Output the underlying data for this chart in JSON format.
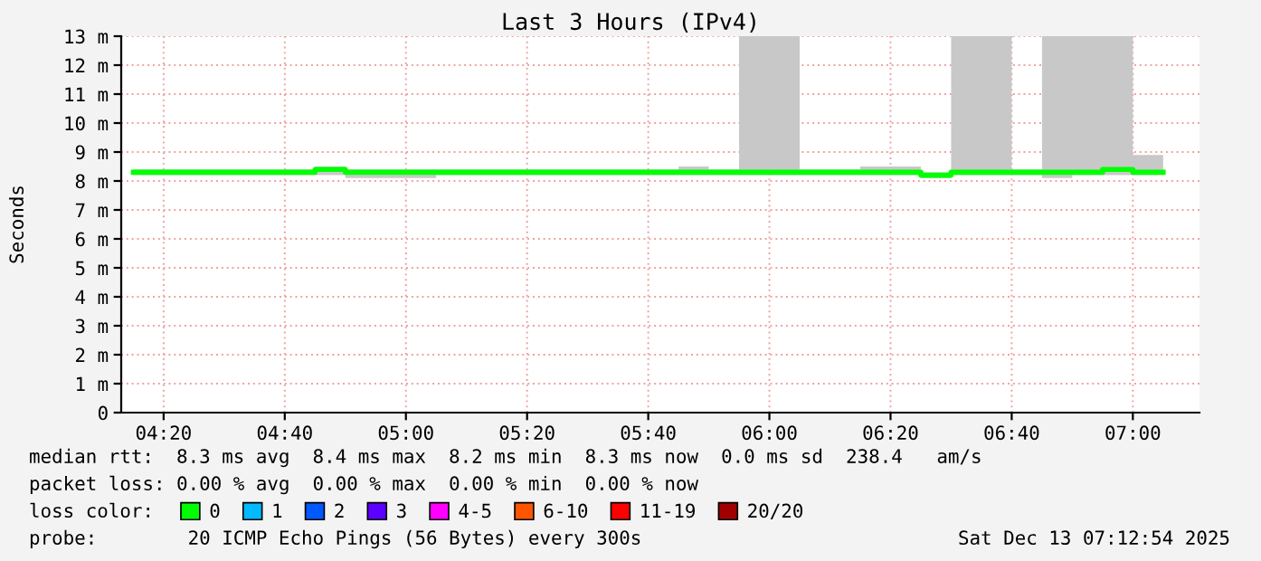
{
  "chart_data": {
    "type": "step",
    "title": "Last 3 Hours (IPv4)",
    "ylabel": "Seconds",
    "x": [
      "2025-12-13T04:15",
      "2025-12-13T04:20",
      "2025-12-13T04:25",
      "2025-12-13T04:30",
      "2025-12-13T04:35",
      "2025-12-13T04:40",
      "2025-12-13T04:45",
      "2025-12-13T04:50",
      "2025-12-13T04:55",
      "2025-12-13T05:00",
      "2025-12-13T05:05",
      "2025-12-13T05:10",
      "2025-12-13T05:15",
      "2025-12-13T05:20",
      "2025-12-13T05:25",
      "2025-12-13T05:30",
      "2025-12-13T05:35",
      "2025-12-13T05:40",
      "2025-12-13T05:45",
      "2025-12-13T05:50",
      "2025-12-13T05:55",
      "2025-12-13T06:00",
      "2025-12-13T06:05",
      "2025-12-13T06:10",
      "2025-12-13T06:15",
      "2025-12-13T06:20",
      "2025-12-13T06:25",
      "2025-12-13T06:30",
      "2025-12-13T06:35",
      "2025-12-13T06:40",
      "2025-12-13T06:45",
      "2025-12-13T06:50",
      "2025-12-13T06:55",
      "2025-12-13T07:00",
      "2025-12-13T07:05"
    ],
    "series": [
      {
        "name": "0",
        "color": "#00ff00",
        "values": [
          8.3,
          8.3,
          8.3,
          8.3,
          8.3,
          8.3,
          8.3,
          8.4,
          8.3,
          8.3,
          8.3,
          8.3,
          8.3,
          8.3,
          8.3,
          8.3,
          8.3,
          8.3,
          8.3,
          8.3,
          8.3,
          8.3,
          8.3,
          8.3,
          8.3,
          8.3,
          8.3,
          8.2,
          8.3,
          8.3,
          8.3,
          8.3,
          8.3,
          8.4,
          8.3
        ],
        "lower": [
          8.2,
          8.2,
          8.2,
          8.2,
          8.2,
          8.2,
          8.2,
          8.2,
          8.1,
          8.1,
          8.1,
          8.2,
          8.2,
          8.2,
          8.2,
          8.2,
          8.2,
          8.2,
          8.2,
          8.2,
          8.2,
          8.2,
          8.2,
          8.2,
          8.2,
          8.2,
          8.2,
          8.1,
          8.2,
          8.2,
          8.2,
          8.1,
          8.2,
          8.2,
          8.2
        ],
        "upper": [
          8.4,
          8.4,
          8.4,
          8.4,
          8.4,
          8.4,
          8.4,
          8.5,
          8.4,
          8.4,
          8.4,
          8.4,
          8.4,
          8.4,
          8.4,
          8.4,
          8.4,
          8.4,
          8.4,
          8.5,
          8.4,
          13,
          13,
          8.4,
          8.4,
          8.5,
          8.5,
          8.3,
          13,
          13,
          8.4,
          13,
          13,
          13,
          8.9
        ]
      },
      {
        "name": "1",
        "color": "#00bbff",
        "values": [
          null,
          null,
          null,
          null,
          null,
          null,
          null,
          null,
          null,
          null,
          null,
          null,
          null,
          null,
          null,
          null,
          null,
          null,
          null,
          null,
          null,
          null,
          null,
          null,
          null,
          null,
          null,
          null,
          null,
          null,
          null,
          null,
          null,
          null,
          null
        ]
      },
      {
        "name": "2",
        "color": "#0059ff",
        "values": [
          null,
          null,
          null,
          null,
          null,
          null,
          null,
          null,
          null,
          null,
          null,
          null,
          null,
          null,
          null,
          null,
          null,
          null,
          null,
          null,
          null,
          null,
          null,
          null,
          null,
          null,
          null,
          null,
          null,
          null,
          null,
          null,
          null,
          null,
          null
        ]
      },
      {
        "name": "3",
        "color": "#5e00ff",
        "values": [
          null,
          null,
          null,
          null,
          null,
          null,
          null,
          null,
          null,
          null,
          null,
          null,
          null,
          null,
          null,
          null,
          null,
          null,
          null,
          null,
          null,
          null,
          null,
          null,
          null,
          null,
          null,
          null,
          null,
          null,
          null,
          null,
          null,
          null,
          null
        ]
      },
      {
        "name": "4-5",
        "color": "#ff00ff",
        "values": [
          null,
          null,
          null,
          null,
          null,
          null,
          null,
          null,
          null,
          null,
          null,
          null,
          null,
          null,
          null,
          null,
          null,
          null,
          null,
          null,
          null,
          null,
          null,
          null,
          null,
          null,
          null,
          null,
          null,
          null,
          null,
          null,
          null,
          null,
          null
        ]
      },
      {
        "name": "6-10",
        "color": "#ff5500",
        "values": [
          null,
          null,
          null,
          null,
          null,
          null,
          null,
          null,
          null,
          null,
          null,
          null,
          null,
          null,
          null,
          null,
          null,
          null,
          null,
          null,
          null,
          null,
          null,
          null,
          null,
          null,
          null,
          null,
          null,
          null,
          null,
          null,
          null,
          null,
          null
        ]
      },
      {
        "name": "11-19",
        "color": "#ff0000",
        "values": [
          null,
          null,
          null,
          null,
          null,
          null,
          null,
          null,
          null,
          null,
          null,
          null,
          null,
          null,
          null,
          null,
          null,
          null,
          null,
          null,
          null,
          null,
          null,
          null,
          null,
          null,
          null,
          null,
          null,
          null,
          null,
          null,
          null,
          null,
          null
        ]
      },
      {
        "name": "20/20",
        "color": "#a10000",
        "values": [
          null,
          null,
          null,
          null,
          null,
          null,
          null,
          null,
          null,
          null,
          null,
          null,
          null,
          null,
          null,
          null,
          null,
          null,
          null,
          null,
          null,
          null,
          null,
          null,
          null,
          null,
          null,
          null,
          null,
          null,
          null,
          null,
          null,
          null,
          null
        ]
      }
    ],
    "xlim": [
      "2025-12-13T04:13",
      "2025-12-13T07:11"
    ],
    "xticks": [
      {
        "value": "2025-12-13T04:20",
        "label": "04:20"
      },
      {
        "value": "2025-12-13T04:40",
        "label": "04:40"
      },
      {
        "value": "2025-12-13T05:00",
        "label": "05:00"
      },
      {
        "value": "2025-12-13T05:20",
        "label": "05:20"
      },
      {
        "value": "2025-12-13T05:40",
        "label": "05:40"
      },
      {
        "value": "2025-12-13T06:00",
        "label": "06:00"
      },
      {
        "value": "2025-12-13T06:20",
        "label": "06:20"
      },
      {
        "value": "2025-12-13T06:40",
        "label": "06:40"
      },
      {
        "value": "2025-12-13T07:00",
        "label": "07:00"
      }
    ],
    "ylim": [
      0,
      13
    ],
    "yticks": [
      0,
      {
        "value": 1,
        "label": "1 m"
      },
      {
        "value": 2,
        "label": "2 m"
      },
      {
        "value": 3,
        "label": "3 m"
      },
      {
        "value": 4,
        "label": "4 m"
      },
      {
        "value": 5,
        "label": "5 m"
      },
      {
        "value": 6,
        "label": "6 m"
      },
      {
        "value": 7,
        "label": "7 m"
      },
      {
        "value": 8,
        "label": "8 m"
      },
      {
        "value": 9,
        "label": "9 m"
      },
      {
        "value": 10,
        "label": "10 m"
      },
      {
        "value": 11,
        "label": "11 m"
      },
      {
        "value": 12,
        "label": "12 m"
      },
      {
        "value": 13,
        "label": "13 m"
      }
    ],
    "grid": true,
    "legend": "bottom",
    "legend_title": "loss color:",
    "annotations": [
      "median rtt:  8.3 ms avg  8.4 ms max  8.2 ms min  8.3 ms now  0.0 ms sd  238.4   am/s",
      "packet loss: 0.00 % avg  0.00 % max  0.00 % min  0.00 % now",
      "probe:        20 ICMP Echo Pings (56 Bytes) every 300s",
      "Sat Dec 13 07:12:54 2025"
    ]
  }
}
